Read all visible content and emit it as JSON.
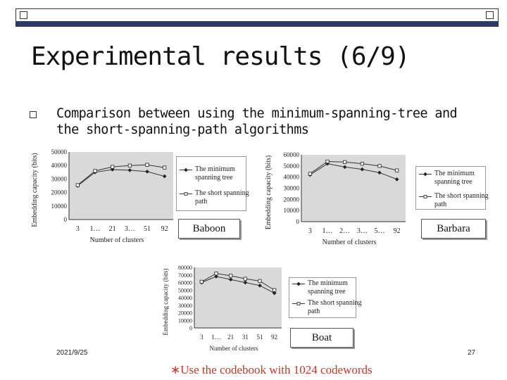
{
  "slide": {
    "title": "Experimental results (6/9)",
    "bullet": "Comparison between using the minimum-spanning-tree and the short-spanning-path algorithms",
    "date": "2021/9/25",
    "page": "27",
    "footnote": "∗Use the codebook with 1024 codewords"
  },
  "chart_data": [
    {
      "type": "line",
      "name_label": "Baboon",
      "xlabel": "Number of clusters",
      "ylabel": "Embedding capacity (bits)",
      "categories": [
        "3",
        "1…",
        "21",
        "3…",
        "51",
        "92"
      ],
      "yticks": [
        "50000",
        "40000",
        "30000",
        "20000",
        "10000",
        "0"
      ],
      "ylim": [
        0,
        50000
      ],
      "series": [
        {
          "name": "The minimum spanning tree",
          "marker": "diamond",
          "values": [
            25000,
            35000,
            37000,
            36500,
            35500,
            32000
          ]
        },
        {
          "name": "The short spanning path",
          "marker": "square",
          "values": [
            25500,
            36000,
            39000,
            40000,
            40500,
            38500
          ]
        }
      ],
      "legend": [
        "The minimum spanning tree",
        "The short spanning path"
      ]
    },
    {
      "type": "line",
      "name_label": "Barbara",
      "xlabel": "Number of clusters",
      "ylabel": "Embedding capacity (bits)",
      "categories": [
        "3",
        "1…",
        "2…",
        "3…",
        "5…",
        "92"
      ],
      "yticks": [
        "60000",
        "50000",
        "40000",
        "30000",
        "20000",
        "10000",
        "0"
      ],
      "ylim": [
        0,
        60000
      ],
      "series": [
        {
          "name": "The minimum spanning tree",
          "marker": "diamond",
          "values": [
            42000,
            52000,
            49000,
            47000,
            44000,
            38000
          ]
        },
        {
          "name": "The short spanning path",
          "marker": "square",
          "values": [
            43000,
            54000,
            53500,
            52000,
            50000,
            46000
          ]
        }
      ],
      "legend": [
        "The minimum spanning tree",
        "The short spanning path"
      ]
    },
    {
      "type": "line",
      "name_label": "Boat",
      "xlabel": "Number of clusters",
      "ylabel": "Embedding capacity (bits)",
      "categories": [
        "3",
        "1…",
        "21",
        "31",
        "51",
        "92"
      ],
      "yticks": [
        "80000",
        "70000",
        "60000",
        "50000",
        "40000",
        "30000",
        "20000",
        "10000",
        "0"
      ],
      "ylim": [
        0,
        80000
      ],
      "series": [
        {
          "name": "The minimum spanning tree",
          "marker": "diamond",
          "values": [
            60000,
            68000,
            64000,
            60000,
            56000,
            46000
          ]
        },
        {
          "name": "The short spanning path",
          "marker": "square",
          "values": [
            61000,
            72000,
            69000,
            65000,
            62000,
            50000
          ]
        }
      ],
      "legend": [
        "The minimum spanning tree",
        "The short spanning path"
      ]
    }
  ]
}
